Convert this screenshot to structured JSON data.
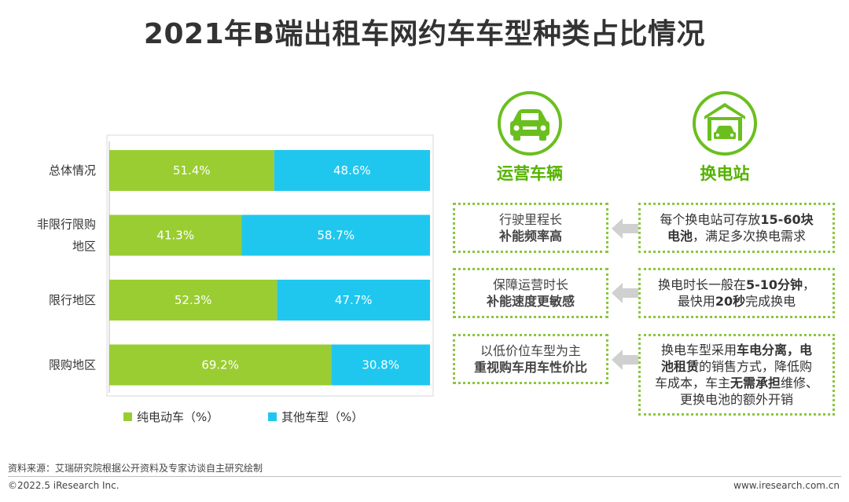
{
  "title": "2021年B端出租车网约车车型种类占比情况",
  "chart_data": {
    "type": "bar",
    "orientation": "horizontal",
    "stacked": true,
    "categories": [
      "总体情况",
      "非限行限购地区",
      "限行地区",
      "限购地区"
    ],
    "category_lines": [
      [
        "总体情况"
      ],
      [
        "非限行限购",
        "地区"
      ],
      [
        "限行地区"
      ],
      [
        "限购地区"
      ]
    ],
    "series": [
      {
        "name": "纯电动车（%）",
        "color": "#9acd32",
        "values": [
          51.4,
          41.3,
          52.3,
          69.2
        ],
        "labels": [
          "51.4%",
          "41.3%",
          "52.3%",
          "69.2%"
        ]
      },
      {
        "name": "其他车型（%）",
        "color": "#1fc7ef",
        "values": [
          48.6,
          58.7,
          47.7,
          30.8
        ],
        "labels": [
          "48.6%",
          "58.7%",
          "47.7%",
          "30.8%"
        ]
      }
    ],
    "xlim": [
      0,
      100
    ],
    "legend": "bottom",
    "grid": false
  },
  "panel": {
    "car_icon_name": "car-icon",
    "station_icon_name": "garage-icon",
    "car_label": "运营车辆",
    "station_label": "换电站",
    "accent_color": "#6abf1e",
    "rows": [
      {
        "left_l1": "行驶里程长",
        "left_l2": "补能频率高",
        "right": [
          {
            "t": "每个换电站可存放",
            "b": "15-60块"
          },
          {
            "b": "电池",
            "t": "，满足多次换电需求"
          }
        ]
      },
      {
        "left_l1": "保障运营时长",
        "left_l2": "补能速度更敏感",
        "right": [
          {
            "t": "换电时长一般在",
            "b": "5-10分钟",
            "t2": "，"
          },
          {
            "t": "最快用",
            "b": "20秒",
            "t2": "完成换电"
          }
        ]
      },
      {
        "left_l1": "以低价位车型为主",
        "left_l2": "重视购车用车性价比",
        "right": [
          {
            "t": "换电车型采用",
            "b": "车电分离，电"
          },
          {
            "b": "池租赁",
            "t2": "的销售方式，降低购"
          },
          {
            "t": "车成本，车主",
            "b": "无需承担",
            "t2": "维修、"
          },
          {
            "t": "更换电池的额外开销"
          }
        ]
      }
    ]
  },
  "footer": {
    "source": "资料来源：艾瑞研究院根据公开资料及专家访谈自主研究绘制",
    "copyright": "©2022.5 iResearch Inc.",
    "website": "www.iresearch.com.cn"
  }
}
